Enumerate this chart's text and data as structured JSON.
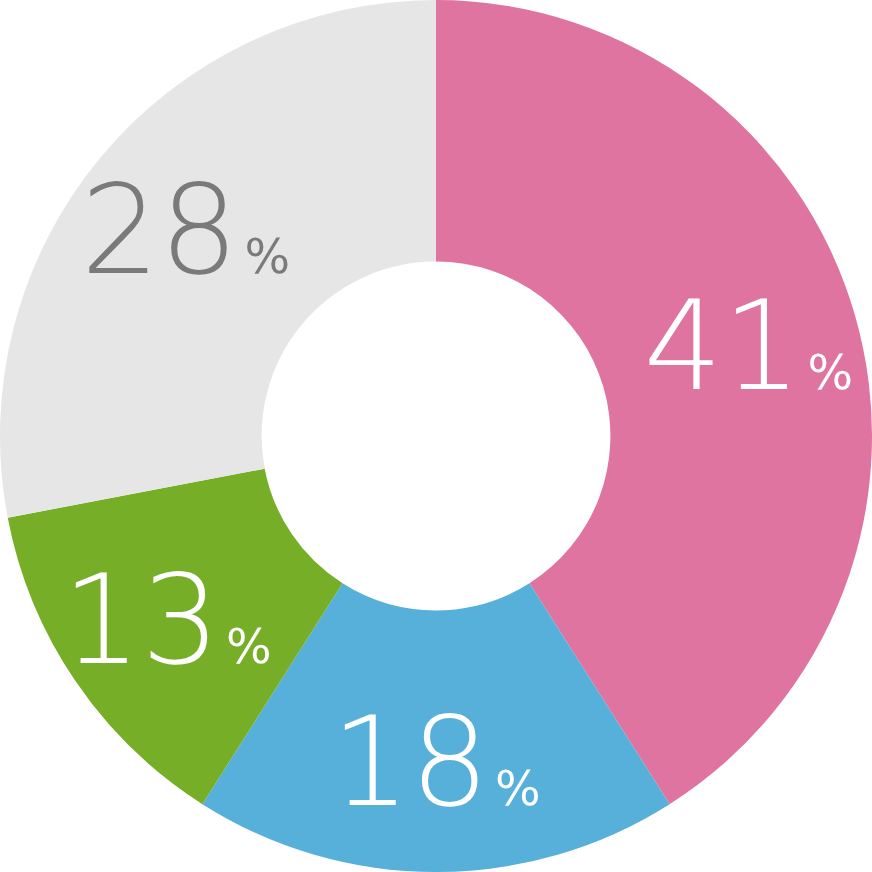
{
  "chart_data": {
    "type": "donut",
    "categories": [
      null,
      null,
      null,
      null
    ],
    "values": [
      41,
      18,
      13,
      28
    ],
    "colors": [
      "#df74a1",
      "#56b0d9",
      "#76af27",
      "#e6e6e6"
    ],
    "value_labels": [
      "41%",
      "18%",
      "13%",
      "28%"
    ],
    "legend": false
  }
}
